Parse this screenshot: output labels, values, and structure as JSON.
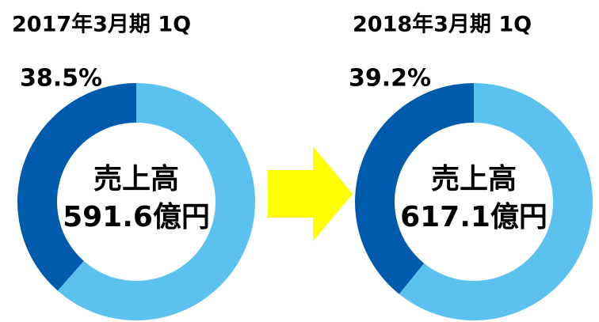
{
  "chart_data": [
    {
      "type": "donut",
      "title": "2017年3月期 1Q",
      "center_label": [
        "売上高",
        "591.6億円"
      ],
      "values": [
        38.5,
        61.5
      ],
      "value_labels": [
        "38.5%",
        null
      ],
      "colors": [
        "#005bac",
        "#5bc2f0"
      ]
    },
    {
      "type": "donut",
      "title": "2018年3月期 1Q",
      "center_label": [
        "売上高",
        "617.1億円"
      ],
      "values": [
        39.2,
        60.8
      ],
      "value_labels": [
        "39.2%",
        null
      ],
      "colors": [
        "#005bac",
        "#5bc2f0"
      ]
    }
  ]
}
